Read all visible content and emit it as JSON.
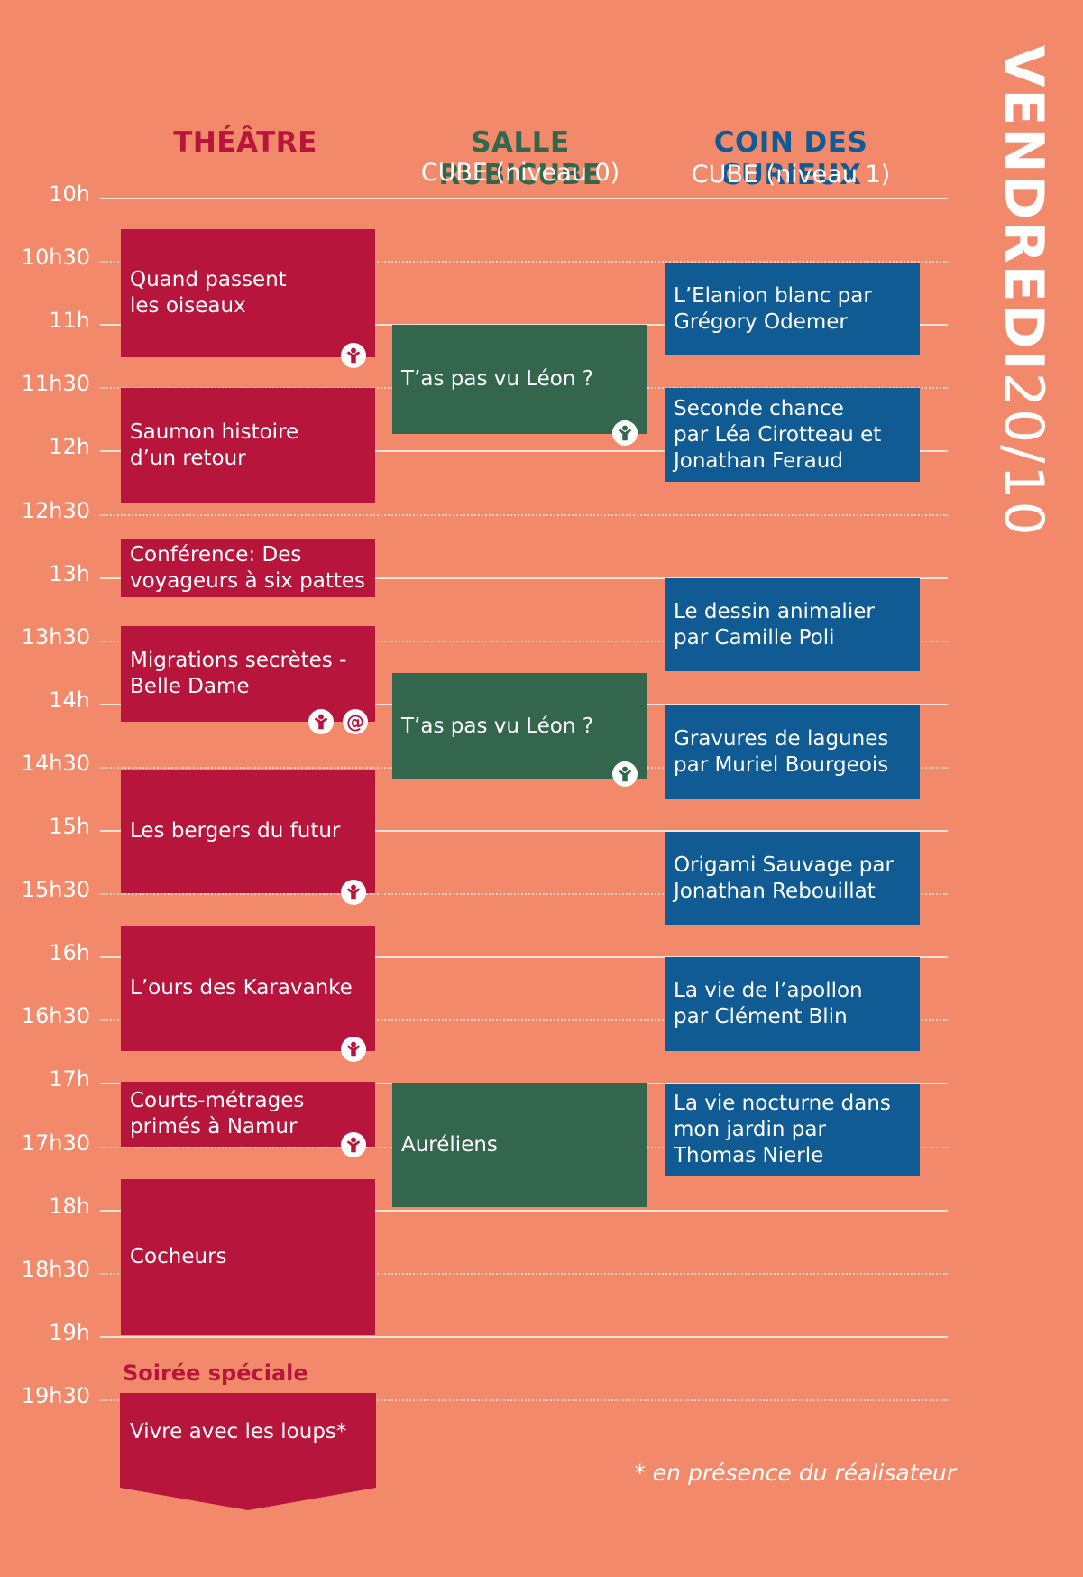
{
  "header": {
    "day": "VENDREDI",
    "date": "20/10",
    "columns": [
      {
        "title": "THÉÂTRE",
        "subtitle": "",
        "color": "#b8153c"
      },
      {
        "title": "SALLE RUBICUBE",
        "subtitle": "CUBE (niveau 0)",
        "color": "#33664d"
      },
      {
        "title": "COIN DES CURIEUX",
        "subtitle": "CUBE (niveau 1)",
        "color": "#105b94"
      }
    ]
  },
  "times": [
    "10h",
    "10h30",
    "11h",
    "11h30",
    "12h",
    "12h30",
    "13h",
    "13h30",
    "14h",
    "14h30",
    "15h",
    "15h30",
    "16h",
    "16h30",
    "17h",
    "17h30",
    "18h",
    "18h30",
    "19h",
    "19h30"
  ],
  "theatre": [
    {
      "lines": [
        "Quand passent",
        "les oiseaux"
      ],
      "badges": [
        "family"
      ]
    },
    {
      "lines": [
        "Saumon histoire",
        "d’un retour"
      ],
      "badges": []
    },
    {
      "lines": [
        "Conférence: Des",
        "voyageurs à six pattes"
      ],
      "badges": []
    },
    {
      "lines": [
        "Migrations secrètes -",
        "Belle Dame"
      ],
      "badges": [
        "family",
        "at"
      ]
    },
    {
      "lines": [
        "Les bergers du futur"
      ],
      "badges": [
        "family"
      ]
    },
    {
      "lines": [
        "L’ours des Karavanke"
      ],
      "badges": [
        "family"
      ]
    },
    {
      "lines": [
        "Courts-métrages",
        "primés à Namur"
      ],
      "badges": [
        "family"
      ]
    },
    {
      "lines": [
        "Cocheurs"
      ],
      "badges": []
    },
    {
      "lines": [
        "Vivre avec les loups*"
      ],
      "badges": []
    }
  ],
  "rubicube": [
    {
      "lines": [
        "T’as pas vu Léon ?"
      ],
      "badges": [
        "family"
      ]
    },
    {
      "lines": [
        "T’as pas vu Léon ?"
      ],
      "badges": [
        "family"
      ]
    },
    {
      "lines": [
        "Auréliens"
      ],
      "badges": []
    }
  ],
  "curieux": [
    {
      "lines": [
        "L’Elanion blanc par",
        "Grégory Odemer"
      ]
    },
    {
      "lines": [
        "Seconde chance",
        "par Léa Cirotteau et",
        "Jonathan Feraud"
      ]
    },
    {
      "lines": [
        "Le dessin animalier",
        "par  Camille Poli"
      ]
    },
    {
      "lines": [
        "Gravures de lagunes",
        "par  Muriel Bourgeois"
      ]
    },
    {
      "lines": [
        "Origami Sauvage par",
        "Jonathan Rebouillat"
      ]
    },
    {
      "lines": [
        "La vie de l’apollon",
        "par Clément Blin"
      ]
    },
    {
      "lines": [
        "La vie nocturne dans",
        "mon jardin par",
        "Thomas Nierle"
      ]
    }
  ],
  "soiree_label": "Soirée spéciale",
  "footnote": "* en présence du réalisateur",
  "at_symbol": "@"
}
